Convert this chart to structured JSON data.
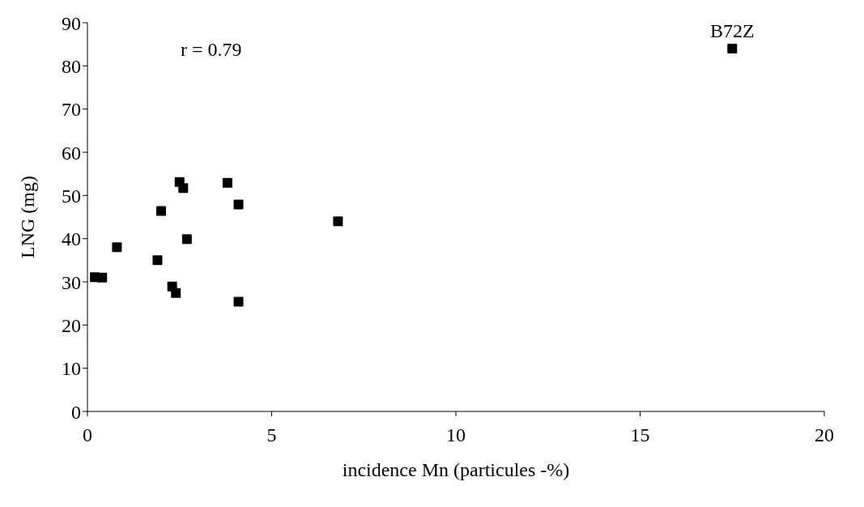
{
  "chart_data": {
    "type": "scatter",
    "xlabel": "incidence Mn (particules -%)",
    "ylabel": "LNG  (mg)",
    "x": [
      0.2,
      0.4,
      0.8,
      1.9,
      2.0,
      2.3,
      2.4,
      2.5,
      2.6,
      2.7,
      3.8,
      4.1,
      4.1,
      6.8,
      17.5
    ],
    "series": [
      {
        "color": "#000000",
        "values": [
          31.1,
          31.0,
          38.0,
          35.0,
          46.4,
          28.9,
          27.4,
          53.1,
          51.7,
          39.9,
          52.9,
          47.9,
          25.4,
          44.0,
          84.0
        ]
      }
    ],
    "xlim": [
      0,
      20
    ],
    "xticks": [
      0,
      5,
      10,
      15,
      20
    ],
    "ylim": [
      0,
      90
    ],
    "yticks": [
      0,
      10,
      20,
      30,
      40,
      50,
      60,
      70,
      80,
      90
    ],
    "grid": false,
    "legend": false,
    "marker": "square",
    "annotations": [
      "r = 0.79",
      {
        "text": "B72Z",
        "x": 17.5,
        "y": 84.0
      }
    ]
  }
}
